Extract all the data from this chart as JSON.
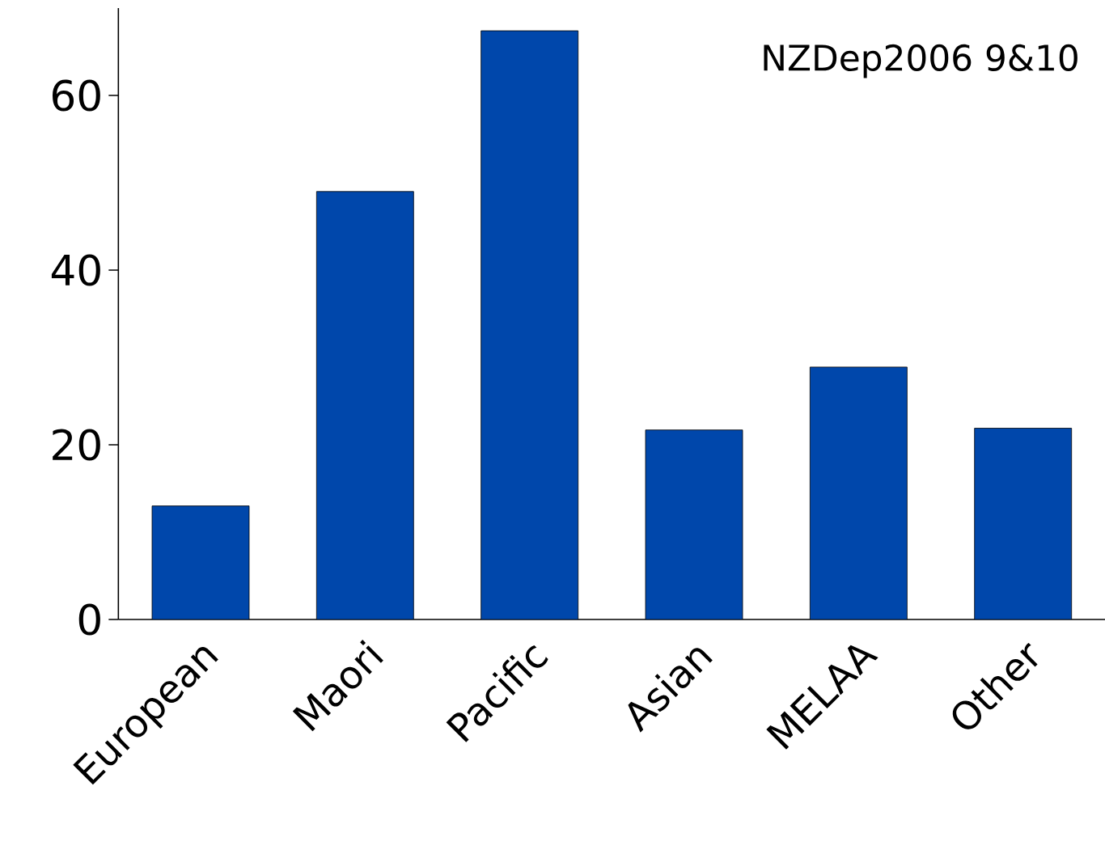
{
  "chart_data": {
    "type": "bar",
    "categories": [
      "European",
      "Maori",
      "Pacific",
      "Asian",
      "MELAA",
      "Other"
    ],
    "values": [
      13,
      49,
      67.4,
      21.7,
      28.9,
      21.9
    ],
    "color": "#0047ab",
    "ylim": [
      0,
      70
    ],
    "yticks": [
      0,
      20,
      40,
      60
    ],
    "grid": false,
    "annotations": [
      "NZDep2006 9&10"
    ]
  }
}
